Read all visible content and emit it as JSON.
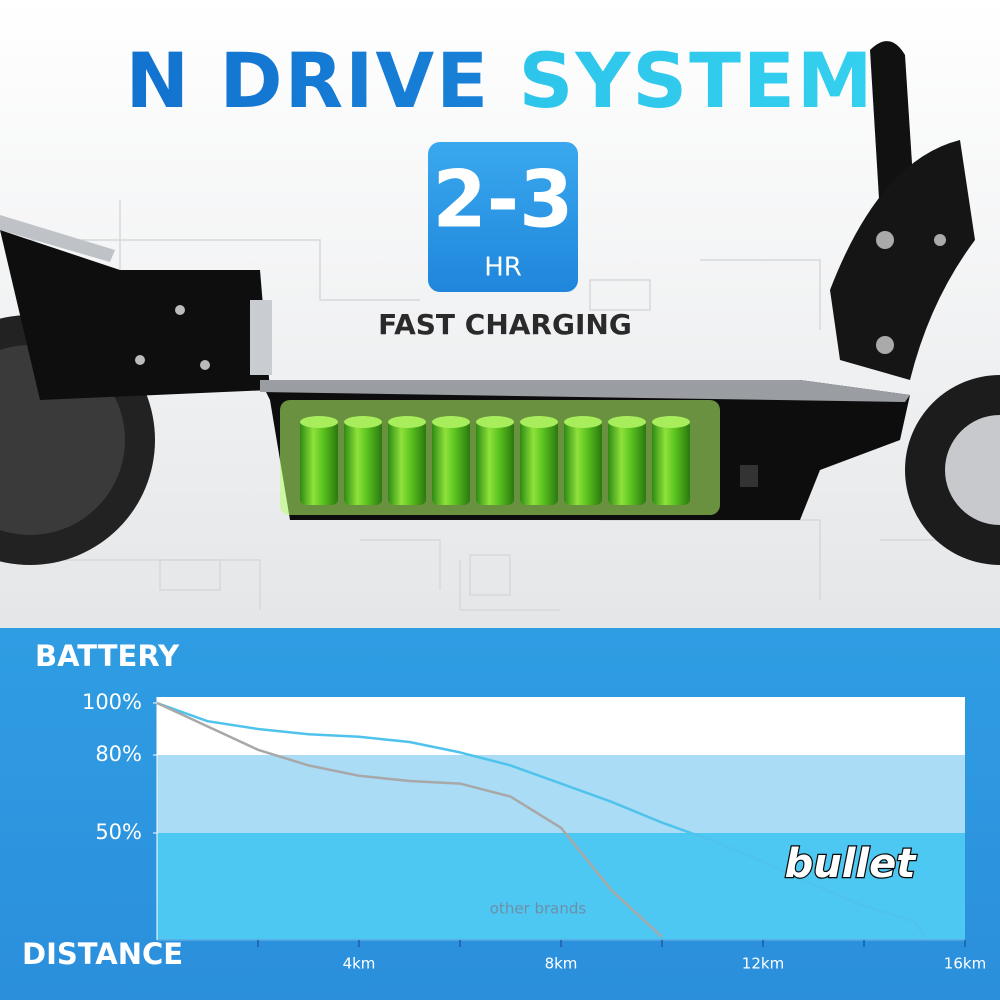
{
  "header": {
    "title_part1": "N DRIVE",
    "title_part2": "SYSTEM",
    "badge_value": "2-3",
    "badge_unit": "HR",
    "caption": "FAST CHARGING"
  },
  "chart_data": {
    "type": "line",
    "y_label": "BATTERY",
    "x_label": "DISTANCE",
    "xlim": [
      0,
      16
    ],
    "ylim": [
      10,
      100
    ],
    "xticks": [
      {
        "value": 4,
        "label": "4km"
      },
      {
        "value": 8,
        "label": "8km"
      },
      {
        "value": 12,
        "label": "12km"
      },
      {
        "value": 16,
        "label": "16km"
      }
    ],
    "xminorticks": [
      2,
      6,
      10,
      14
    ],
    "yticks": [
      {
        "value": 100,
        "label": "100%"
      },
      {
        "value": 80,
        "label": "80%"
      },
      {
        "value": 50,
        "label": "50%"
      }
    ],
    "series": [
      {
        "name": "bullet",
        "color": "#4fc3ec",
        "x": [
          0,
          1,
          2,
          3,
          4,
          5,
          6,
          7,
          8,
          9,
          10,
          11,
          12,
          13,
          14,
          15,
          15.2
        ],
        "values": [
          100,
          93,
          90,
          88,
          87,
          85,
          81,
          76,
          69,
          62,
          54,
          47,
          39,
          30,
          22,
          16,
          10
        ]
      },
      {
        "name": "other brands",
        "color": "#a8a8a8",
        "x": [
          0,
          1,
          2,
          3,
          4,
          5,
          6,
          7,
          8,
          9,
          10
        ],
        "values": [
          100,
          91,
          82,
          76,
          72,
          70,
          69,
          64,
          52,
          28,
          10
        ]
      }
    ]
  }
}
